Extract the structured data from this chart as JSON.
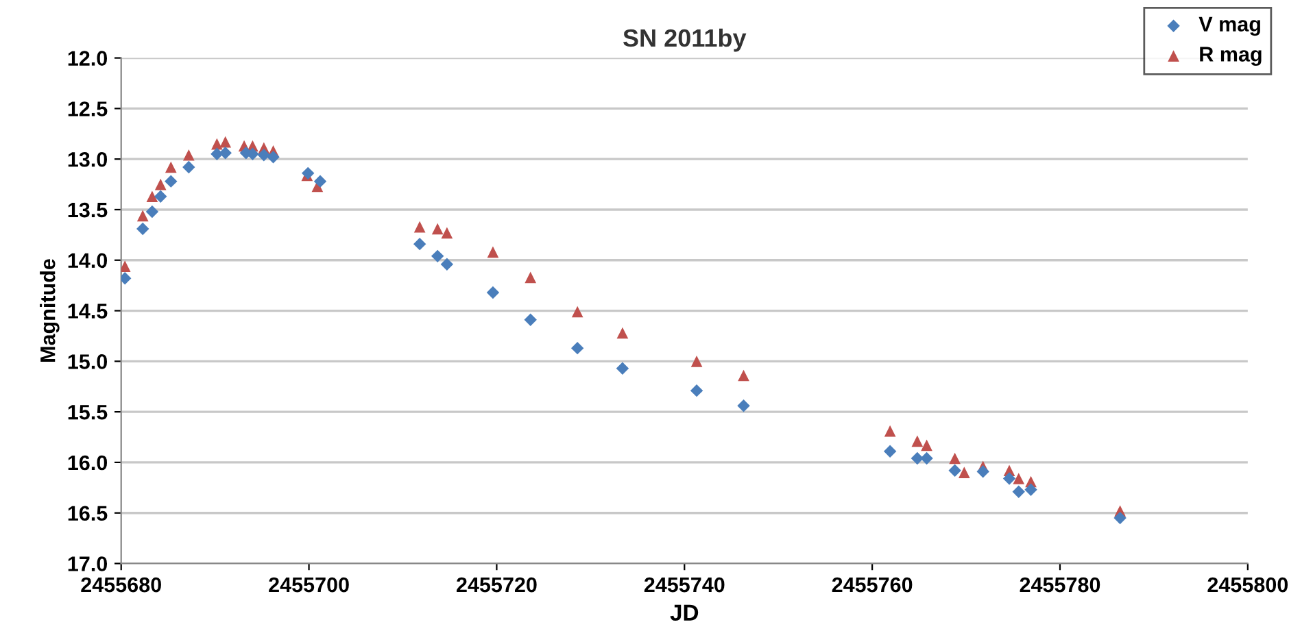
{
  "chart_data": {
    "type": "scatter",
    "title": "SN 2011by",
    "xlabel": "JD",
    "ylabel": "Magnitude",
    "xlim": [
      2455680,
      2455800
    ],
    "xticks": [
      2455680,
      2455700,
      2455720,
      2455740,
      2455760,
      2455780,
      2455800
    ],
    "ylim": [
      17.0,
      12.0
    ],
    "yticks": [
      {
        "value": 12.0,
        "label": "12.0"
      },
      {
        "value": 12.5,
        "label": "12.5"
      },
      {
        "value": 13.0,
        "label": "13.0"
      },
      {
        "value": 13.5,
        "label": "13.5"
      },
      {
        "value": 14.0,
        "label": "14.0"
      },
      {
        "value": 14.5,
        "label": "14.5"
      },
      {
        "value": 15.0,
        "label": "15.0"
      },
      {
        "value": 15.5,
        "label": "15.5"
      },
      {
        "value": 16.0,
        "label": "16.0"
      },
      {
        "value": 16.5,
        "label": "16.5"
      },
      {
        "value": 17.0,
        "label": "17.0"
      }
    ],
    "grid": "y",
    "legend": "top right",
    "series": [
      {
        "name": "V mag",
        "color": "#4a7ebb",
        "marker": "diamond",
        "x": [
          2455680.4,
          2455682.3,
          2455683.3,
          2455684.2,
          2455685.3,
          2455687.2,
          2455690.2,
          2455691.1,
          2455693.3,
          2455694.0,
          2455695.2,
          2455696.2,
          2455699.9,
          2455701.2,
          2455711.8,
          2455713.7,
          2455714.7,
          2455719.6,
          2455723.6,
          2455728.6,
          2455733.4,
          2455741.3,
          2455746.3,
          2455761.9,
          2455764.8,
          2455765.8,
          2455768.8,
          2455771.8,
          2455774.6,
          2455775.6,
          2455776.9,
          2455786.4
        ],
        "values": [
          14.18,
          13.69,
          13.52,
          13.37,
          13.22,
          13.08,
          12.95,
          12.94,
          12.94,
          12.95,
          12.96,
          12.98,
          13.14,
          13.22,
          13.84,
          13.96,
          14.04,
          14.32,
          14.59,
          14.87,
          15.07,
          15.29,
          15.44,
          15.89,
          15.96,
          15.96,
          16.08,
          16.09,
          16.16,
          16.29,
          16.27,
          16.55
        ]
      },
      {
        "name": "R mag",
        "color": "#c0504d",
        "marker": "triangle",
        "x": [
          2455680.4,
          2455682.3,
          2455683.3,
          2455684.2,
          2455685.3,
          2455687.2,
          2455690.2,
          2455691.1,
          2455693.1,
          2455694.0,
          2455695.2,
          2455696.2,
          2455699.8,
          2455700.9,
          2455711.8,
          2455713.7,
          2455714.7,
          2455719.6,
          2455723.6,
          2455728.6,
          2455733.4,
          2455741.3,
          2455746.3,
          2455761.9,
          2455764.8,
          2455765.8,
          2455768.8,
          2455769.8,
          2455771.8,
          2455774.6,
          2455775.6,
          2455776.9,
          2455786.4
        ],
        "values": [
          14.06,
          13.56,
          13.37,
          13.25,
          13.08,
          12.96,
          12.85,
          12.83,
          12.87,
          12.87,
          12.89,
          12.92,
          13.16,
          13.27,
          13.67,
          13.69,
          13.73,
          13.92,
          14.17,
          14.51,
          14.72,
          15.0,
          15.14,
          15.69,
          15.79,
          15.83,
          15.96,
          16.1,
          16.04,
          16.08,
          16.16,
          16.19,
          16.48
        ]
      }
    ]
  }
}
